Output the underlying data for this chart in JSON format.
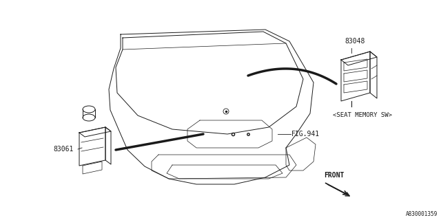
{
  "bg_color": "#ffffff",
  "line_color": "#1a1a1a",
  "label_83048": "83048",
  "label_83061": "83061",
  "label_seat_memory": "<SEAT MEMORY SW>",
  "label_fig941": "FIG.941",
  "label_front": "FRONT",
  "label_part_num": "A830001359",
  "font_size_labels": 7,
  "font_size_small": 6.0,
  "lw_main": 0.7,
  "lw_bold": 2.5,
  "lw_thin": 0.5
}
